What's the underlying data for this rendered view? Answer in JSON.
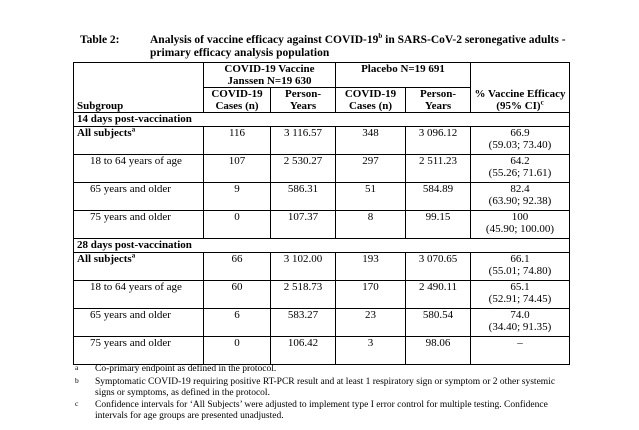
{
  "title": {
    "label": "Table 2:",
    "text": "Analysis of vaccine efficacy against COVID-19",
    "sup": "b",
    "text2": " in SARS-CoV-2 seronegative adults - primary efficacy analysis population"
  },
  "header": {
    "vaccine": "COVID-19 Vaccine Janssen N=19 630",
    "placebo": "Placebo N=19 691",
    "subgroup": "Subgroup",
    "cases": "COVID-19 Cases (n)",
    "py": "Person-Years",
    "ve": "% Vaccine Efficacy (95% CI)",
    "ve_sup": "c"
  },
  "sections": [
    {
      "label": "14 days post-vaccination",
      "rows": [
        {
          "sub": "All subjects",
          "sup": "a",
          "vc": "116",
          "vpy": "3 116.57",
          "pc": "348",
          "ppy": "3 096.12",
          "ve": "66.9",
          "ci": "(59.03; 73.40)"
        },
        {
          "sub": "18 to 64 years of age",
          "vc": "107",
          "vpy": "2 530.27",
          "pc": "297",
          "ppy": "2 511.23",
          "ve": "64.2",
          "ci": "(55.26; 71.61)"
        },
        {
          "sub": "65 years and older",
          "vc": "9",
          "vpy": "586.31",
          "pc": "51",
          "ppy": "584.89",
          "ve": "82.4",
          "ci": "(63.90; 92.38)"
        },
        {
          "sub": "75 years and older",
          "vc": "0",
          "vpy": "107.37",
          "pc": "8",
          "ppy": "99.15",
          "ve": "100",
          "ci": "(45.90; 100.00)"
        }
      ]
    },
    {
      "label": "28 days post-vaccination",
      "rows": [
        {
          "sub": "All subjects",
          "sup": "a",
          "vc": "66",
          "vpy": "3 102.00",
          "pc": "193",
          "ppy": "3 070.65",
          "ve": "66.1",
          "ci": "(55.01; 74.80)"
        },
        {
          "sub": "18 to 64 years of age",
          "vc": "60",
          "vpy": "2 518.73",
          "pc": "170",
          "ppy": "2 490.11",
          "ve": "65.1",
          "ci": "(52.91; 74.45)"
        },
        {
          "sub": "65 years and older",
          "vc": "6",
          "vpy": "583.27",
          "pc": "23",
          "ppy": "580.54",
          "ve": "74.0",
          "ci": "(34.40; 91.35)"
        },
        {
          "sub": "75 years and older",
          "vc": "0",
          "vpy": "106.42",
          "pc": "3",
          "ppy": "98.06",
          "ve": "–",
          "ci": ""
        }
      ]
    }
  ],
  "footnotes": [
    {
      "mark": "a",
      "text": "Co-primary endpoint as defined in the protocol."
    },
    {
      "mark": "b",
      "text": "Symptomatic COVID-19 requiring positive RT-PCR result and at least 1 respiratory sign or symptom or 2 other systemic signs or symptoms, as defined in the protocol."
    },
    {
      "mark": "c",
      "text": "Confidence intervals for ‘All Subjects’ were adjusted to implement type I error control for multiple testing. Confidence intervals for age groups are presented unadjusted."
    }
  ]
}
